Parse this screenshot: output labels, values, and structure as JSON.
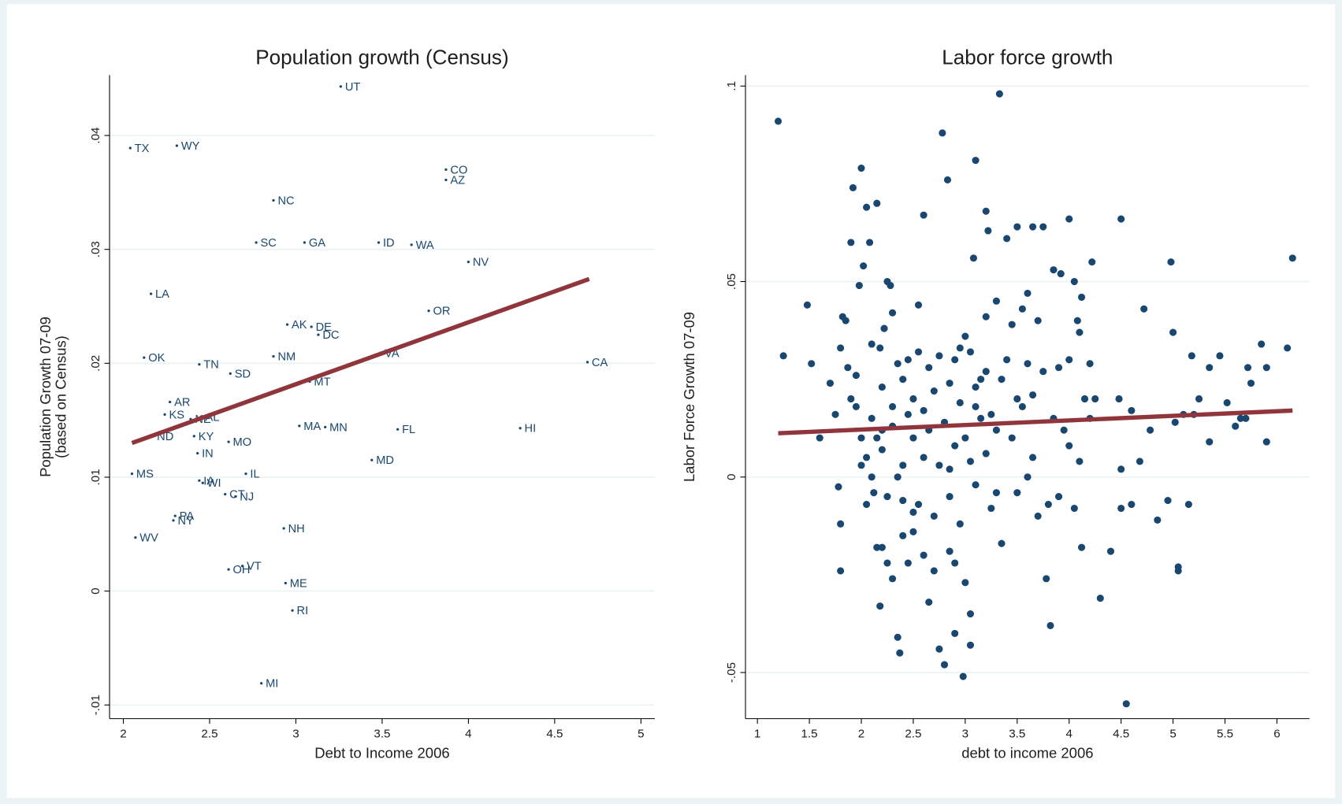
{
  "chart_data": [
    {
      "type": "scatter",
      "title": "Population growth (Census)",
      "xlabel": "Debt to Income 2006",
      "ylabel": [
        "Population Growth 07-09",
        "(based on Census)"
      ],
      "color": "#1a476f",
      "grid": true,
      "xlim": [
        1.92,
        5.08
      ],
      "ylim": [
        -0.0112,
        0.0453
      ],
      "xticks": [
        2,
        2.5,
        3,
        3.5,
        4,
        4.5,
        5
      ],
      "yticks": [
        {
          "value": -0.01,
          "label": "-.01"
        },
        0,
        {
          "value": 0.01,
          "label": ".01"
        },
        {
          "value": 0.02,
          "label": ".02"
        },
        {
          "value": 0.03,
          "label": ".03"
        },
        {
          "value": 0.04,
          "label": ".04"
        }
      ],
      "labels": [
        "UT",
        "TX",
        "WY",
        "CO",
        "AZ",
        "NC",
        "SC",
        "GA",
        "ID",
        "WA",
        "NV",
        "LA",
        "OR",
        "AK",
        "DE",
        "DC",
        "OK",
        "NM",
        "VA",
        "CA",
        "TN",
        "SD",
        "MT",
        "AR",
        "KS",
        "NE",
        "AL",
        "MA",
        "MN",
        "FL",
        "HI",
        "ND",
        "KY",
        "MO",
        "IN",
        "MD",
        "MS",
        "IL",
        "IA",
        "WI",
        "CT",
        "NJ",
        "PA",
        "NY",
        "WV",
        "NH",
        "OH",
        "VT",
        "ME",
        "RI",
        "MI"
      ],
      "x": [
        3.26,
        2.04,
        2.31,
        3.87,
        3.87,
        2.87,
        2.77,
        3.05,
        3.48,
        3.67,
        4.0,
        2.16,
        3.77,
        2.95,
        3.09,
        3.13,
        2.12,
        2.87,
        3.49,
        4.69,
        2.44,
        2.62,
        3.08,
        2.27,
        2.24,
        2.39,
        2.45,
        3.02,
        3.17,
        3.59,
        4.3,
        2.17,
        2.41,
        2.61,
        2.43,
        3.44,
        2.05,
        2.71,
        2.44,
        2.46,
        2.59,
        2.65,
        2.3,
        2.29,
        2.07,
        2.93,
        2.61,
        2.69,
        2.94,
        2.98,
        2.8
      ],
      "y": [
        0.0443,
        0.0389,
        0.0391,
        0.037,
        0.0361,
        0.0343,
        0.0306,
        0.0306,
        0.0306,
        0.0304,
        0.0289,
        0.0261,
        0.0246,
        0.0234,
        0.0232,
        0.0225,
        0.0205,
        0.0206,
        0.0209,
        0.0201,
        0.0199,
        0.0191,
        0.0184,
        0.0166,
        0.0155,
        0.0151,
        0.0153,
        0.0145,
        0.0144,
        0.0142,
        0.0143,
        0.0136,
        0.0136,
        0.0131,
        0.0121,
        0.0115,
        0.0103,
        0.0103,
        0.0097,
        0.0095,
        0.0085,
        0.0083,
        0.0066,
        0.0062,
        0.0047,
        0.0055,
        0.0019,
        0.0022,
        0.0007,
        -0.0017,
        -0.0081
      ],
      "fit": {
        "color": "#90353b",
        "x": [
          2.05,
          4.7
        ],
        "y": [
          0.013,
          0.0274
        ]
      }
    },
    {
      "type": "scatter",
      "title": "Labor force growth",
      "xlabel": "debt to income 2006",
      "ylabel": [
        "Labor Force Growth 07-09"
      ],
      "color": "#1a476f",
      "grid": true,
      "xlim": [
        0.885,
        6.313
      ],
      "ylim": [
        -0.0618,
        0.1028
      ],
      "xticks": [
        1,
        1.5,
        2,
        2.5,
        3,
        3.5,
        4,
        4.5,
        5,
        5.5,
        6
      ],
      "yticks": [
        {
          "value": -0.05,
          "label": "-.05"
        },
        0,
        {
          "value": 0.05,
          "label": ".05"
        },
        {
          "value": 0.1,
          "label": ".1"
        }
      ],
      "x": [
        1.2,
        1.25,
        1.48,
        1.52,
        1.6,
        1.7,
        1.75,
        1.78,
        1.8,
        1.82,
        1.85,
        1.87,
        1.9,
        1.92,
        1.95,
        1.98,
        1.8,
        1.8,
        2.0,
        2.02,
        2.05,
        2.08,
        2.1,
        2.15,
        2.18,
        2.2,
        2.22,
        2.25,
        2.28,
        2.3,
        2.12,
        2.15,
        2.18,
        2.2,
        2.25,
        2.3,
        2.35,
        2.37,
        2.4,
        2.45,
        2.5,
        2.55,
        2.6,
        2.65,
        2.7,
        2.75,
        2.78,
        2.8,
        2.83,
        2.85,
        2.9,
        2.98,
        3.0,
        3.05,
        3.05,
        3.08,
        3.1,
        3.2,
        3.22,
        3.33,
        3.4,
        3.5,
        3.65,
        3.75,
        4.0,
        4.5,
        3.85,
        3.92,
        4.05,
        4.12,
        4.22,
        3.6,
        3.7,
        3.55,
        3.3,
        3.2,
        3.15,
        3.0,
        2.9,
        2.95,
        2.85,
        2.7,
        2.6,
        2.5,
        2.4,
        2.35,
        2.3,
        2.2,
        2.1,
        2.05,
        2.0,
        1.95,
        1.9,
        2.0,
        2.05,
        2.1,
        2.15,
        2.2,
        2.25,
        2.3,
        2.35,
        2.4,
        2.45,
        2.5,
        2.55,
        2.6,
        2.65,
        2.7,
        2.75,
        2.8,
        2.85,
        2.9,
        2.95,
        3.0,
        3.05,
        3.1,
        3.15,
        3.2,
        3.25,
        3.3,
        3.35,
        3.4,
        3.45,
        3.5,
        3.55,
        3.6,
        3.65,
        3.7,
        3.75,
        3.78,
        3.8,
        3.82,
        3.85,
        3.9,
        3.95,
        4.0,
        4.05,
        4.08,
        4.1,
        4.12,
        4.15,
        4.2,
        4.25,
        4.3,
        4.4,
        4.48,
        4.5,
        4.5,
        4.55,
        4.6,
        4.6,
        4.68,
        4.72,
        4.78,
        4.85,
        4.95,
        4.98,
        5.0,
        5.02,
        5.05,
        5.05,
        5.1,
        5.15,
        5.18,
        5.2,
        5.25,
        5.35,
        5.35,
        5.45,
        5.52,
        5.6,
        5.65,
        5.7,
        5.72,
        5.75,
        5.85,
        5.9,
        5.9,
        6.1,
        6.15,
        3.1,
        3.05,
        2.95,
        2.75,
        2.65,
        2.55,
        2.45,
        2.9,
        2.6,
        2.5,
        2.4,
        2.85,
        3.1,
        3.2,
        3.3,
        3.45,
        3.6,
        3.65,
        3.9,
        4.0,
        4.1,
        4.2,
        3.5,
        3.25,
        3.35
      ],
      "y": [
        0.091,
        0.031,
        0.044,
        0.029,
        0.01,
        0.024,
        0.016,
        -0.0025,
        0.033,
        0.041,
        0.04,
        0.028,
        0.06,
        0.074,
        0.026,
        0.049,
        -0.012,
        -0.024,
        0.079,
        0.054,
        0.069,
        0.06,
        0.034,
        0.07,
        0.033,
        0.012,
        0.038,
        0.05,
        0.049,
        0.042,
        -0.004,
        -0.018,
        -0.033,
        -0.018,
        -0.022,
        -0.026,
        -0.041,
        -0.045,
        -0.015,
        -0.022,
        -0.009,
        0.044,
        0.067,
        -0.032,
        -0.024,
        -0.044,
        0.088,
        -0.048,
        0.076,
        -0.019,
        -0.04,
        -0.051,
        -0.027,
        -0.035,
        -0.043,
        0.056,
        0.081,
        0.068,
        0.063,
        0.098,
        0.061,
        0.064,
        0.064,
        0.064,
        0.066,
        0.066,
        0.053,
        0.052,
        0.05,
        0.046,
        0.055,
        0.047,
        0.04,
        0.043,
        0.045,
        0.041,
        0.025,
        0.036,
        0.03,
        0.019,
        0.024,
        0.022,
        0.017,
        0.02,
        0.025,
        0.029,
        0.018,
        0.023,
        0.015,
        0.005,
        0.01,
        0.018,
        0.02,
        0.003,
        -0.007,
        0.0,
        0.01,
        0.007,
        -0.005,
        0.013,
        0.0,
        0.003,
        0.016,
        0.01,
        -0.007,
        0.005,
        0.012,
        -0.01,
        0.003,
        0.014,
        -0.005,
        0.008,
        -0.012,
        0.01,
        0.004,
        -0.002,
        0.015,
        0.006,
        -0.008,
        0.012,
        -0.017,
        0.03,
        0.01,
        -0.004,
        0.018,
        0.0,
        0.005,
        -0.01,
        0.027,
        -0.026,
        -0.007,
        -0.038,
        0.015,
        -0.005,
        0.012,
        0.03,
        -0.008,
        0.04,
        0.004,
        -0.018,
        0.02,
        0.015,
        0.02,
        -0.031,
        -0.019,
        0.02,
        0.002,
        -0.008,
        -0.058,
        0.017,
        -0.007,
        0.004,
        0.043,
        0.012,
        -0.011,
        -0.006,
        0.055,
        0.037,
        0.014,
        -0.024,
        -0.023,
        0.016,
        -0.007,
        0.031,
        0.016,
        0.02,
        0.028,
        0.009,
        0.031,
        0.019,
        0.013,
        0.015,
        0.015,
        0.028,
        0.024,
        0.034,
        0.028,
        0.009,
        0.033,
        0.056,
        0.023,
        0.032,
        0.033,
        0.031,
        0.028,
        0.032,
        0.03,
        -0.022,
        -0.02,
        -0.014,
        -0.006,
        0.002,
        0.018,
        0.027,
        -0.004,
        0.039,
        0.029,
        0.021,
        0.028,
        0.008,
        0.037,
        0.029,
        0.02,
        0.016,
        0.025
      ],
      "fit": {
        "color": "#90353b",
        "x": [
          1.2,
          6.15
        ],
        "y": [
          0.0112,
          0.017
        ]
      }
    }
  ]
}
